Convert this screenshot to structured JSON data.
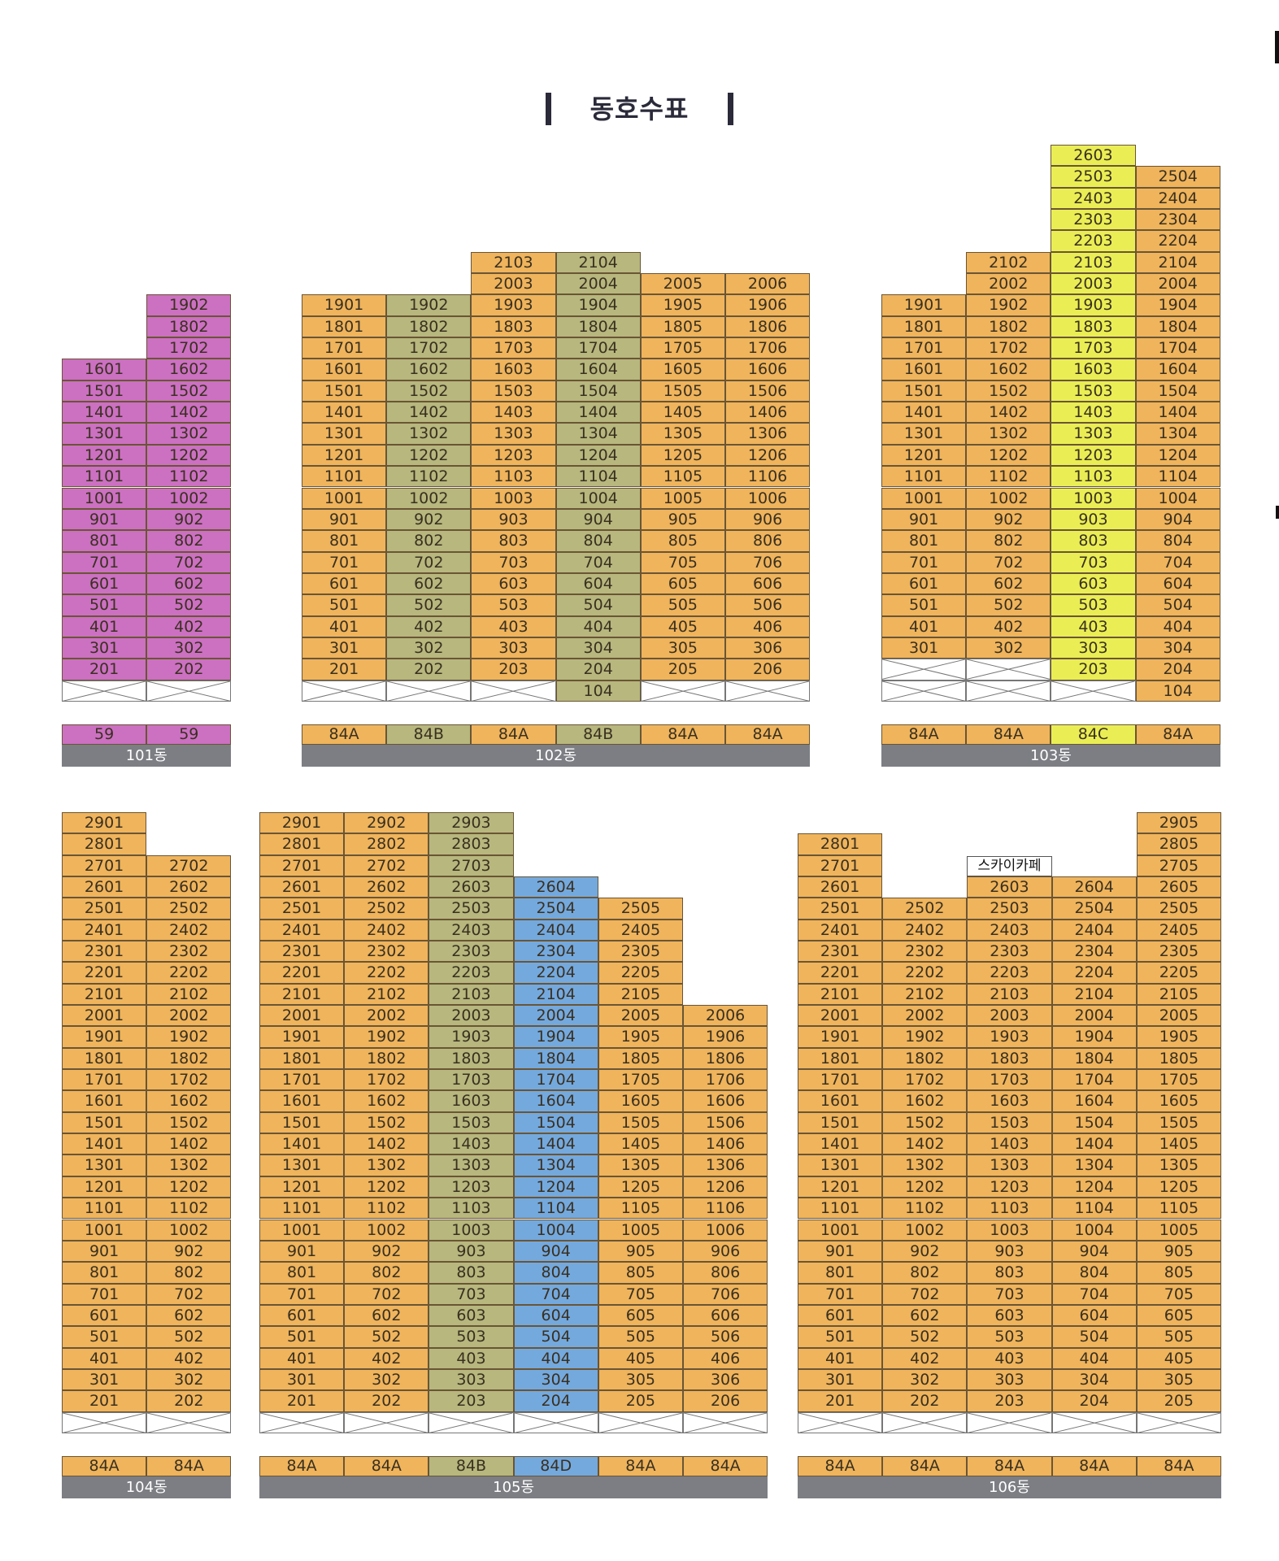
{
  "title": "동호수표",
  "colors": {
    "orange": "#efb45c",
    "olive": "#b7b77e",
    "pink": "#cc70c2",
    "yellow": "#eaee54",
    "blue": "#74a9de"
  },
  "sky_cafe_label": "스카이카페",
  "buildings": [
    {
      "name": "101동",
      "columns": [
        {
          "unit": "01",
          "top": 16,
          "has_pilotis": true,
          "has_104": false,
          "type": "59",
          "color": "pink"
        },
        {
          "unit": "02",
          "top": 19,
          "has_pilotis": true,
          "has_104": false,
          "type": "59",
          "color": "pink"
        }
      ]
    },
    {
      "name": "102동",
      "columns": [
        {
          "unit": "01",
          "top": 19,
          "has_pilotis": true,
          "has_104": false,
          "type": "84A",
          "color": "orange"
        },
        {
          "unit": "02",
          "top": 19,
          "has_pilotis": true,
          "has_104": false,
          "type": "84B",
          "color": "olive"
        },
        {
          "unit": "03",
          "top": 21,
          "has_pilotis": true,
          "has_104": false,
          "type": "84A",
          "color": "orange"
        },
        {
          "unit": "04",
          "top": 21,
          "has_pilotis": false,
          "has_104": true,
          "type": "84B",
          "color": "olive"
        },
        {
          "unit": "05",
          "top": 20,
          "has_pilotis": true,
          "has_104": false,
          "type": "84A",
          "color": "orange"
        },
        {
          "unit": "06",
          "top": 20,
          "has_pilotis": true,
          "has_104": false,
          "type": "84A",
          "color": "orange"
        }
      ]
    },
    {
      "name": "103동",
      "columns": [
        {
          "unit": "01",
          "top": 19,
          "bottom": 3,
          "pilotis_count": 2,
          "type": "84A",
          "color": "orange"
        },
        {
          "unit": "02",
          "top": 21,
          "bottom": 3,
          "pilotis_count": 2,
          "type": "84A",
          "color": "orange"
        },
        {
          "unit": "03",
          "top": 26,
          "bottom": 2,
          "pilotis_count": 1,
          "type": "84C",
          "color": "yellow"
        },
        {
          "unit": "04",
          "top": 25,
          "bottom": 2,
          "pilotis_count": 0,
          "has_104": true,
          "type": "84A",
          "color": "orange"
        }
      ]
    },
    {
      "name": "104동",
      "columns": [
        {
          "unit": "01",
          "top": 29,
          "has_pilotis": true,
          "type": "84A",
          "color": "orange"
        },
        {
          "unit": "02",
          "top": 27,
          "has_pilotis": true,
          "type": "84A",
          "color": "orange"
        }
      ]
    },
    {
      "name": "105동",
      "columns": [
        {
          "unit": "01",
          "top": 29,
          "has_pilotis": true,
          "type": "84A",
          "color": "orange"
        },
        {
          "unit": "02",
          "top": 29,
          "has_pilotis": true,
          "type": "84A",
          "color": "orange"
        },
        {
          "unit": "03",
          "top": 29,
          "has_pilotis": true,
          "type": "84B",
          "color": "olive"
        },
        {
          "unit": "04",
          "top": 26,
          "has_pilotis": true,
          "type": "84D",
          "color": "blue"
        },
        {
          "unit": "05",
          "top": 25,
          "has_pilotis": true,
          "type": "84A",
          "color": "orange"
        },
        {
          "unit": "06",
          "top": 20,
          "has_pilotis": true,
          "type": "84A",
          "color": "orange"
        }
      ]
    },
    {
      "name": "106동",
      "columns": [
        {
          "unit": "01",
          "top": 28,
          "has_pilotis": true,
          "type": "84A",
          "color": "orange"
        },
        {
          "unit": "02",
          "top": 25,
          "has_pilotis": true,
          "type": "84A",
          "color": "orange"
        },
        {
          "unit": "03",
          "top": 26,
          "has_pilotis": true,
          "type": "84A",
          "color": "orange"
        },
        {
          "unit": "04",
          "top": 26,
          "has_pilotis": true,
          "type": "84A",
          "color": "orange"
        },
        {
          "unit": "05",
          "top": 29,
          "has_pilotis": true,
          "type": "84A",
          "color": "orange"
        }
      ]
    }
  ]
}
